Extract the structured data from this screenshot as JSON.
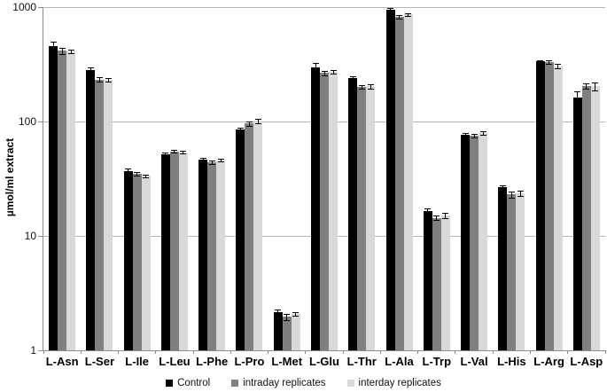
{
  "chart_data": {
    "type": "bar",
    "title": "",
    "xlabel": "",
    "ylabel": "µmol/ml extract",
    "y_scale": "log",
    "ylim": [
      1,
      1000
    ],
    "yticks": [
      1,
      10,
      100,
      1000
    ],
    "ytick_labels": [
      "1",
      "10",
      "100",
      "1000"
    ],
    "grid": "horizontal-gridlines-at-decades",
    "legend_position": "bottom-center",
    "categories": [
      "L-Asn",
      "L-Ser",
      "L-Ile",
      "L-Leu",
      "L-Phe",
      "L-Pro",
      "L-Met",
      "L-Glu",
      "L-Thr",
      "L-Ala",
      "L-Trp",
      "L-Val",
      "L-His",
      "L-Arg",
      "L-Asp"
    ],
    "series": [
      {
        "name": "Control",
        "color": "#000000",
        "values": [
          460,
          280,
          37,
          52,
          46.5,
          85,
          2.15,
          295,
          238,
          950,
          16.5,
          77,
          26.5,
          335,
          162
        ],
        "errors": [
          35,
          15,
          1.5,
          1.5,
          1.5,
          3,
          0.12,
          32,
          12,
          35,
          1.0,
          2,
          1.2,
          8,
          20
        ]
      },
      {
        "name": "intraday replicates",
        "color": "#7f7f7f",
        "values": [
          415,
          233,
          35,
          55,
          44,
          96,
          1.97,
          265,
          200,
          820,
          14.4,
          75,
          23,
          330,
          205
        ],
        "errors": [
          25,
          10,
          1.2,
          1.5,
          1.5,
          4,
          0.12,
          10,
          8,
          25,
          0.7,
          2.5,
          1.5,
          10,
          12
        ]
      },
      {
        "name": "interday replicates",
        "color": "#d9d9d9",
        "values": [
          410,
          230,
          33.5,
          54,
          46,
          101,
          2.08,
          270,
          203,
          860,
          15,
          79,
          23.5,
          305,
          203
        ],
        "errors": [
          15,
          8,
          1.0,
          1.5,
          1.5,
          5,
          0.08,
          10,
          8,
          30,
          0.8,
          3,
          1.3,
          12,
          15
        ]
      }
    ],
    "colors": {
      "axis": "#8c8c8c",
      "gridline": "#b5b5b5",
      "error_bar": "#000000",
      "background": "#ffffff"
    }
  }
}
